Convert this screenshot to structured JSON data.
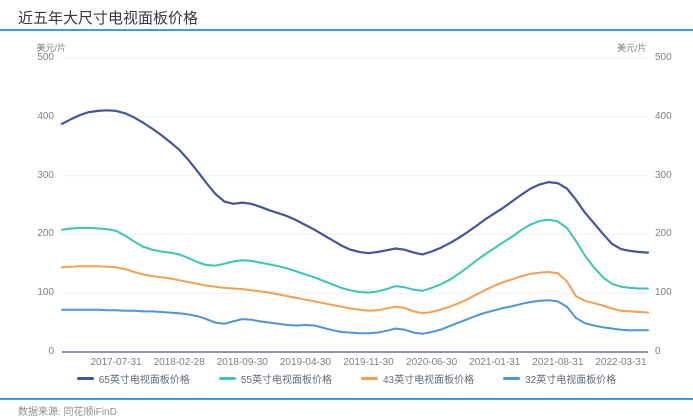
{
  "header": {
    "title": "近五年大尺寸电视面板价格"
  },
  "footer": {
    "source": "数据来源: 同花顺iFinD"
  },
  "colors": {
    "accent_blue": "#3d9af2",
    "axis_line": "#6e6e9e",
    "gridline": "#f0f0f5",
    "tick_text": "#7e7e86",
    "series_65": "#47549b",
    "series_55": "#3ac6b5",
    "series_43": "#f3a052",
    "series_32": "#4d94db"
  },
  "chart_data": {
    "type": "line",
    "title": "近五年大尺寸电视面板价格",
    "ylabel_left": "美元/片",
    "ylabel_right": "美元/片",
    "ylim": [
      0,
      500
    ],
    "y_ticks": [
      0,
      100,
      200,
      300,
      400,
      500
    ],
    "grid": "horizontal",
    "legend_position": "bottom",
    "x_tick_labels": [
      "2017-07-31",
      "2018-02-28",
      "2018-09-30",
      "2019-04-30",
      "2019-11-30",
      "2020-06-30",
      "2021-01-31",
      "2021-08-31",
      "2022-03-31"
    ],
    "x": [
      "2017-01",
      "2017-02",
      "2017-03",
      "2017-04",
      "2017-05",
      "2017-06",
      "2017-07",
      "2017-08",
      "2017-09",
      "2017-10",
      "2017-11",
      "2017-12",
      "2018-01",
      "2018-02",
      "2018-03",
      "2018-04",
      "2018-05",
      "2018-06",
      "2018-07",
      "2018-08",
      "2018-09",
      "2018-10",
      "2018-11",
      "2018-12",
      "2019-01",
      "2019-02",
      "2019-03",
      "2019-04",
      "2019-05",
      "2019-06",
      "2019-07",
      "2019-08",
      "2019-09",
      "2019-10",
      "2019-11",
      "2019-12",
      "2020-01",
      "2020-02",
      "2020-03",
      "2020-04",
      "2020-05",
      "2020-06",
      "2020-07",
      "2020-08",
      "2020-09",
      "2020-10",
      "2020-11",
      "2020-12",
      "2021-01",
      "2021-02",
      "2021-03",
      "2021-04",
      "2021-05",
      "2021-06",
      "2021-07",
      "2021-08",
      "2021-09",
      "2021-10",
      "2021-11",
      "2021-12",
      "2022-01",
      "2022-02",
      "2022-03",
      "2022-04",
      "2022-05",
      "2022-06"
    ],
    "series": [
      {
        "name": "65英寸电视面板价格",
        "color": "#47549b",
        "values": [
          388,
          396,
          403,
          408,
          410,
          411,
          410,
          406,
          399,
          390,
          380,
          369,
          357,
          344,
          327,
          308,
          288,
          269,
          256,
          252,
          254,
          252,
          247,
          241,
          236,
          231,
          224,
          216,
          208,
          199,
          190,
          181,
          174,
          170,
          168,
          170,
          173,
          176,
          174,
          169,
          166,
          171,
          177,
          185,
          194,
          204,
          215,
          226,
          236,
          246,
          257,
          268,
          278,
          285,
          289,
          287,
          278,
          259,
          237,
          219,
          201,
          184,
          175,
          172,
          170,
          169
        ]
      },
      {
        "name": "55英寸电视面板价格",
        "color": "#3ac6b5",
        "values": [
          208,
          210,
          211,
          211,
          210,
          209,
          206,
          198,
          188,
          179,
          174,
          171,
          169,
          166,
          160,
          153,
          148,
          147,
          150,
          154,
          156,
          155,
          152,
          149,
          146,
          142,
          137,
          132,
          127,
          121,
          115,
          109,
          105,
          102,
          101,
          103,
          107,
          112,
          110,
          106,
          104,
          109,
          115,
          123,
          133,
          144,
          156,
          167,
          177,
          187,
          197,
          208,
          217,
          223,
          225,
          222,
          211,
          189,
          164,
          144,
          127,
          116,
          111,
          109,
          108,
          108
        ]
      },
      {
        "name": "43英寸电视面板价格",
        "color": "#f3a052",
        "values": [
          144,
          145,
          146,
          146,
          146,
          145,
          144,
          141,
          136,
          132,
          129,
          127,
          125,
          122,
          119,
          116,
          113,
          111,
          109,
          108,
          107,
          105,
          103,
          101,
          98,
          95,
          92,
          89,
          86,
          83,
          80,
          77,
          74,
          72,
          70,
          71,
          74,
          77,
          75,
          69,
          66,
          68,
          72,
          77,
          83,
          90,
          98,
          106,
          113,
          119,
          124,
          129,
          133,
          135,
          136,
          134,
          120,
          95,
          87,
          83,
          79,
          74,
          70,
          69,
          68,
          67
        ]
      },
      {
        "name": "32英寸电视面板价格",
        "color": "#4d94db",
        "values": [
          72,
          72,
          72,
          72,
          72,
          71,
          71,
          70,
          70,
          69,
          69,
          68,
          67,
          66,
          64,
          61,
          56,
          50,
          48,
          52,
          56,
          55,
          52,
          50,
          48,
          46,
          45,
          46,
          45,
          41,
          37,
          34,
          33,
          32,
          32,
          33,
          36,
          40,
          38,
          33,
          31,
          34,
          38,
          44,
          50,
          56,
          62,
          67,
          71,
          75,
          78,
          82,
          85,
          87,
          88,
          86,
          77,
          58,
          49,
          45,
          42,
          40,
          38,
          37,
          37,
          37
        ]
      }
    ]
  }
}
